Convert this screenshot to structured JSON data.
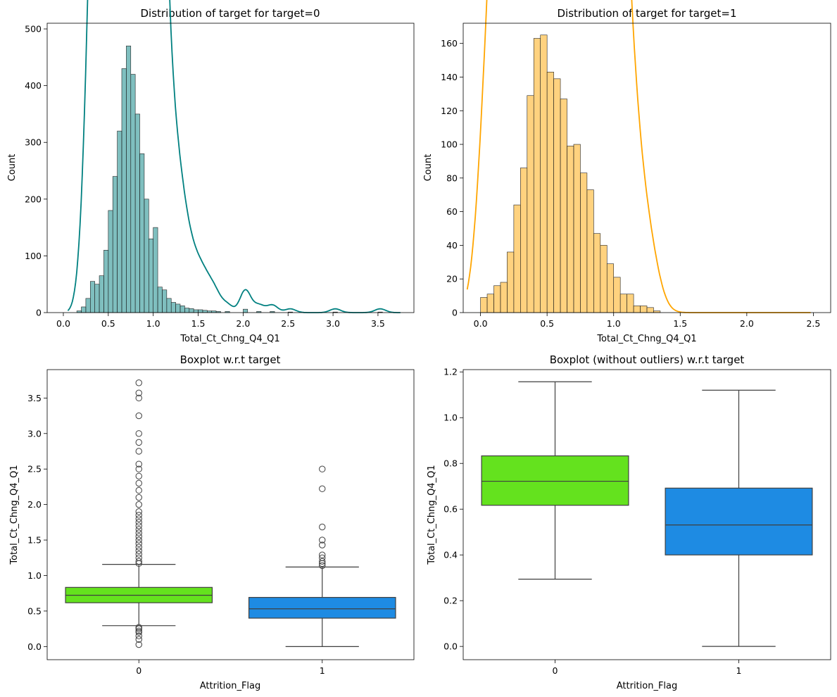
{
  "colors": {
    "target0": "#008080",
    "target1": "#ffa500",
    "box0": "#64e21e",
    "box1": "#1e8be3",
    "edge": "#3f3f3f"
  },
  "chart_data": [
    {
      "type": "histogram",
      "title": "Distribution of target for target=0",
      "xlabel": "Total_Ct_Chng_Q4_Q1",
      "ylabel": "Count",
      "xlim": [
        -0.18,
        3.9
      ],
      "ylim": [
        0,
        510
      ],
      "xticks": [
        0.0,
        0.5,
        1.0,
        1.5,
        2.0,
        2.5,
        3.0,
        3.5
      ],
      "xtick_labels": [
        "0.0",
        "0.5",
        "1.0",
        "1.5",
        "2.0",
        "2.5",
        "3.0",
        "3.5"
      ],
      "yticks": [
        0,
        100,
        200,
        300,
        400,
        500
      ],
      "ytick_labels": [
        "0",
        "100",
        "200",
        "300",
        "400",
        "500"
      ],
      "kde": true,
      "bins": [
        {
          "x": 0.15,
          "y": 3
        },
        {
          "x": 0.2,
          "y": 10
        },
        {
          "x": 0.25,
          "y": 25
        },
        {
          "x": 0.3,
          "y": 55
        },
        {
          "x": 0.35,
          "y": 50
        },
        {
          "x": 0.4,
          "y": 65
        },
        {
          "x": 0.45,
          "y": 110
        },
        {
          "x": 0.5,
          "y": 180
        },
        {
          "x": 0.55,
          "y": 240
        },
        {
          "x": 0.6,
          "y": 320
        },
        {
          "x": 0.65,
          "y": 430
        },
        {
          "x": 0.7,
          "y": 470
        },
        {
          "x": 0.75,
          "y": 420
        },
        {
          "x": 0.8,
          "y": 350
        },
        {
          "x": 0.85,
          "y": 280
        },
        {
          "x": 0.9,
          "y": 200
        },
        {
          "x": 0.95,
          "y": 130
        },
        {
          "x": 1.0,
          "y": 150
        },
        {
          "x": 1.05,
          "y": 45
        },
        {
          "x": 1.1,
          "y": 40
        },
        {
          "x": 1.15,
          "y": 25
        },
        {
          "x": 1.2,
          "y": 18
        },
        {
          "x": 1.25,
          "y": 15
        },
        {
          "x": 1.3,
          "y": 12
        },
        {
          "x": 1.35,
          "y": 8
        },
        {
          "x": 1.4,
          "y": 7
        },
        {
          "x": 1.45,
          "y": 5
        },
        {
          "x": 1.5,
          "y": 5
        },
        {
          "x": 1.55,
          "y": 4
        },
        {
          "x": 1.6,
          "y": 3
        },
        {
          "x": 1.65,
          "y": 3
        },
        {
          "x": 1.7,
          "y": 2
        },
        {
          "x": 1.8,
          "y": 2
        },
        {
          "x": 2.0,
          "y": 6
        },
        {
          "x": 2.15,
          "y": 2
        },
        {
          "x": 2.3,
          "y": 2
        },
        {
          "x": 2.5,
          "y": 1
        },
        {
          "x": 3.0,
          "y": 1
        },
        {
          "x": 3.5,
          "y": 1
        }
      ],
      "bin_width": 0.05
    },
    {
      "type": "histogram",
      "title": "Distribution of target for target=1",
      "xlabel": "Total_Ct_Chng_Q4_Q1",
      "ylabel": "Count",
      "xlim": [
        -0.13,
        2.63
      ],
      "ylim": [
        0,
        172
      ],
      "xticks": [
        0.0,
        0.5,
        1.0,
        1.5,
        2.0,
        2.5
      ],
      "xtick_labels": [
        "0.0",
        "0.5",
        "1.0",
        "1.5",
        "2.0",
        "2.5"
      ],
      "yticks": [
        0,
        20,
        40,
        60,
        80,
        100,
        120,
        140,
        160
      ],
      "ytick_labels": [
        "0",
        "20",
        "40",
        "60",
        "80",
        "100",
        "120",
        "140",
        "160"
      ],
      "kde": true,
      "bin_width": 0.05,
      "bins": [
        {
          "x": 0.0,
          "y": 9
        },
        {
          "x": 0.05,
          "y": 11
        },
        {
          "x": 0.1,
          "y": 16
        },
        {
          "x": 0.15,
          "y": 18
        },
        {
          "x": 0.2,
          "y": 36
        },
        {
          "x": 0.25,
          "y": 64
        },
        {
          "x": 0.3,
          "y": 86
        },
        {
          "x": 0.35,
          "y": 129
        },
        {
          "x": 0.4,
          "y": 163
        },
        {
          "x": 0.45,
          "y": 165
        },
        {
          "x": 0.5,
          "y": 143
        },
        {
          "x": 0.55,
          "y": 139
        },
        {
          "x": 0.6,
          "y": 127
        },
        {
          "x": 0.65,
          "y": 99
        },
        {
          "x": 0.7,
          "y": 100
        },
        {
          "x": 0.75,
          "y": 83
        },
        {
          "x": 0.8,
          "y": 73
        },
        {
          "x": 0.85,
          "y": 47
        },
        {
          "x": 0.9,
          "y": 40
        },
        {
          "x": 0.95,
          "y": 29
        },
        {
          "x": 1.0,
          "y": 21
        },
        {
          "x": 1.05,
          "y": 11
        },
        {
          "x": 1.1,
          "y": 11
        },
        {
          "x": 1.15,
          "y": 4
        },
        {
          "x": 1.2,
          "y": 4
        },
        {
          "x": 1.25,
          "y": 3
        },
        {
          "x": 1.3,
          "y": 1
        }
      ]
    },
    {
      "type": "boxplot",
      "title": "Boxplot w.r.t target",
      "xlabel": "Attrition_Flag",
      "ylabel": "Total_Ct_Chng_Q4_Q1",
      "ylim": [
        -0.185,
        3.9
      ],
      "categories": [
        "0",
        "1"
      ],
      "yticks": [
        0.0,
        0.5,
        1.0,
        1.5,
        2.0,
        2.5,
        3.0,
        3.5
      ],
      "ytick_labels": [
        "0.0",
        "0.5",
        "1.0",
        "1.5",
        "2.0",
        "2.5",
        "3.0",
        "3.5"
      ],
      "boxes": [
        {
          "category": "0",
          "whisker_low": 0.294,
          "q1": 0.617,
          "median": 0.722,
          "q3": 0.833,
          "whisker_high": 1.157,
          "outliers": [
            0.028,
            0.1,
            0.15,
            0.2,
            0.22,
            0.25,
            0.27,
            1.17,
            1.2,
            1.25,
            1.3,
            1.35,
            1.4,
            1.45,
            1.5,
            1.55,
            1.6,
            1.65,
            1.7,
            1.75,
            1.8,
            1.85,
            1.9,
            2.0,
            2.1,
            2.2,
            2.3,
            2.4,
            2.5,
            2.57,
            2.75,
            2.875,
            3.0,
            3.25,
            3.5,
            3.571,
            3.714
          ]
        },
        {
          "category": "1",
          "whisker_low": 0.0,
          "q1": 0.4,
          "median": 0.531,
          "q3": 0.692,
          "whisker_high": 1.12,
          "outliers": [
            1.14,
            1.17,
            1.2,
            1.25,
            1.29,
            1.43,
            1.5,
            1.684,
            2.222,
            2.5
          ]
        }
      ]
    },
    {
      "type": "boxplot",
      "title": "Boxplot (without outliers) w.r.t target",
      "xlabel": "Attrition_Flag",
      "ylabel": "Total_Ct_Chng_Q4_Q1",
      "ylim": [
        -0.058,
        1.21
      ],
      "categories": [
        "0",
        "1"
      ],
      "yticks": [
        0.0,
        0.2,
        0.4,
        0.6,
        0.8,
        1.0,
        1.2
      ],
      "ytick_labels": [
        "0.0",
        "0.2",
        "0.4",
        "0.6",
        "0.8",
        "1.0",
        "1.2"
      ],
      "boxes": [
        {
          "category": "0",
          "whisker_low": 0.294,
          "q1": 0.617,
          "median": 0.722,
          "q3": 0.833,
          "whisker_high": 1.157,
          "outliers": []
        },
        {
          "category": "1",
          "whisker_low": 0.0,
          "q1": 0.4,
          "median": 0.531,
          "q3": 0.692,
          "whisker_high": 1.12,
          "outliers": []
        }
      ]
    }
  ]
}
